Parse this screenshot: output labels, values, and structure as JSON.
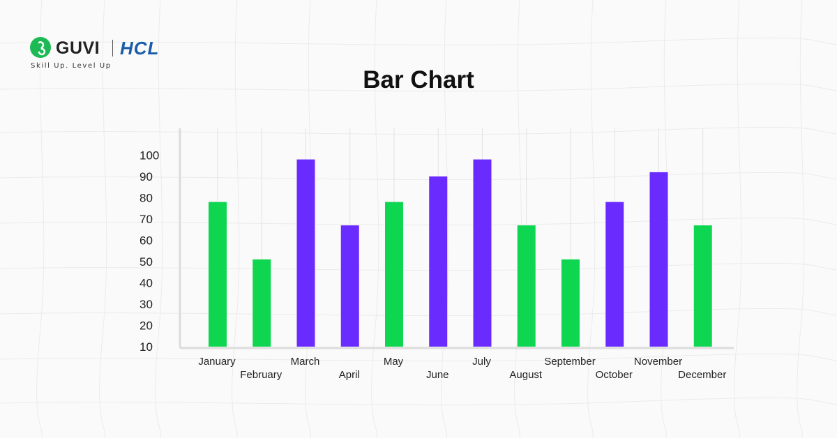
{
  "brand": {
    "name": "GUVI",
    "partner": "HCL",
    "tagline": "Skill Up. Level Up"
  },
  "colors": {
    "green": "#0fd650",
    "purple": "#6a2bff"
  },
  "chart_data": {
    "type": "bar",
    "title": "Bar Chart",
    "xlabel": "",
    "ylabel": "",
    "ylim": [
      0,
      100
    ],
    "yticks": [
      10,
      20,
      30,
      40,
      50,
      60,
      70,
      80,
      90,
      100
    ],
    "categories": [
      "January",
      "February",
      "March",
      "April",
      "May",
      "June",
      "July",
      "August",
      "September",
      "October",
      "November",
      "December"
    ],
    "values": [
      78,
      51,
      98,
      67,
      78,
      90,
      98,
      67,
      51,
      78,
      92,
      67
    ],
    "bar_colors": [
      "green",
      "green",
      "purple",
      "purple",
      "green",
      "purple",
      "purple",
      "green",
      "green",
      "purple",
      "purple",
      "green"
    ],
    "grid": "vertical",
    "legend": "none"
  }
}
